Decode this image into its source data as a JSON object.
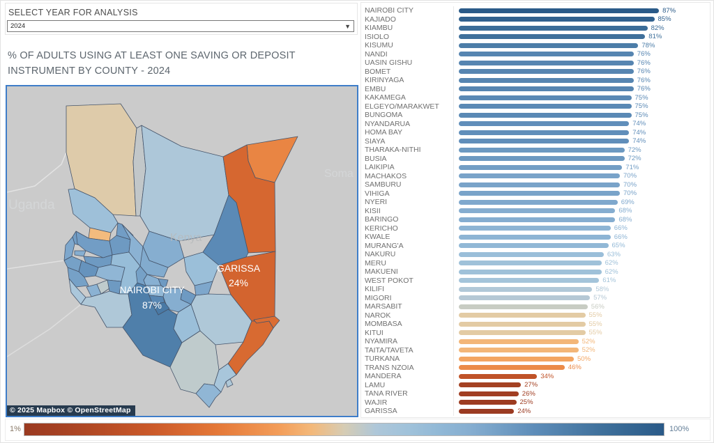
{
  "filter": {
    "label": "SELECT YEAR FOR ANALYSIS",
    "selected": "2024",
    "options": [
      "2024"
    ]
  },
  "title": {
    "line1": "% OF ADULTS USING AT LEAST ONE SAVING OR DEPOSIT",
    "line2": "INSTRUMENT BY COUNTY - 2024"
  },
  "map": {
    "attribution": "© 2025 Mapbox © OpenStreetMap",
    "country_labels": {
      "uganda": "Uganda",
      "kenya": "Kenya",
      "somalia": "Soma"
    },
    "callouts": {
      "garissa": {
        "name": "GARISSA",
        "value": "24%"
      },
      "nairobi": {
        "name": "NAIROBI CITY",
        "value": "87%"
      }
    }
  },
  "legend": {
    "min_label": "1%",
    "max_label": "100%"
  },
  "colors": {
    "map_panel_border": "#3e7dc9",
    "map_background": "#cbcbcb",
    "palette_low": "#9a3a21",
    "palette_mid": "#e6cfa0",
    "palette_high": "#2a5a88"
  },
  "chart_data": {
    "type": "bar",
    "orientation": "horizontal",
    "title": "% OF ADULTS USING AT LEAST ONE SAVING OR DEPOSIT INSTRUMENT BY COUNTY - 2024",
    "categories": [
      "NAIROBI CITY",
      "KAJIADO",
      "KIAMBU",
      "ISIOLO",
      "KISUMU",
      "NANDI",
      "UASIN GISHU",
      "BOMET",
      "KIRINYAGA",
      "EMBU",
      "KAKAMEGA",
      "ELGEYO/MARAKWET",
      "BUNGOMA",
      "NYANDARUA",
      "HOMA BAY",
      "SIAYA",
      "THARAKA-NITHI",
      "BUSIA",
      "LAIKIPIA",
      "MACHAKOS",
      "SAMBURU",
      "VIHIGA",
      "NYERI",
      "KISII",
      "BARINGO",
      "KERICHO",
      "KWALE",
      "MURANG'A",
      "NAKURU",
      "MERU",
      "MAKUENI",
      "WEST POKOT",
      "KILIFI",
      "MIGORI",
      "MARSABIT",
      "NAROK",
      "MOMBASA",
      "KITUI",
      "NYAMIRA",
      "TAITA/TAVETA",
      "TURKANA",
      "TRANS NZOIA",
      "MANDERA",
      "LAMU",
      "TANA RIVER",
      "WAJIR",
      "GARISSA"
    ],
    "values": [
      87,
      85,
      82,
      81,
      78,
      76,
      76,
      76,
      76,
      76,
      75,
      75,
      75,
      74,
      74,
      74,
      72,
      72,
      71,
      70,
      70,
      70,
      69,
      68,
      68,
      66,
      66,
      65,
      63,
      62,
      62,
      61,
      58,
      57,
      56,
      55,
      55,
      55,
      52,
      52,
      50,
      46,
      34,
      27,
      26,
      25,
      24
    ],
    "value_suffix": "%",
    "sort": "descending",
    "color_scale": {
      "type": "diverging-orange-blue",
      "bar_domain": [
        24,
        87
      ],
      "map_domain": [
        1,
        100
      ],
      "legend_range": [
        "1%",
        "100%"
      ]
    },
    "legend_position": "bottom"
  }
}
